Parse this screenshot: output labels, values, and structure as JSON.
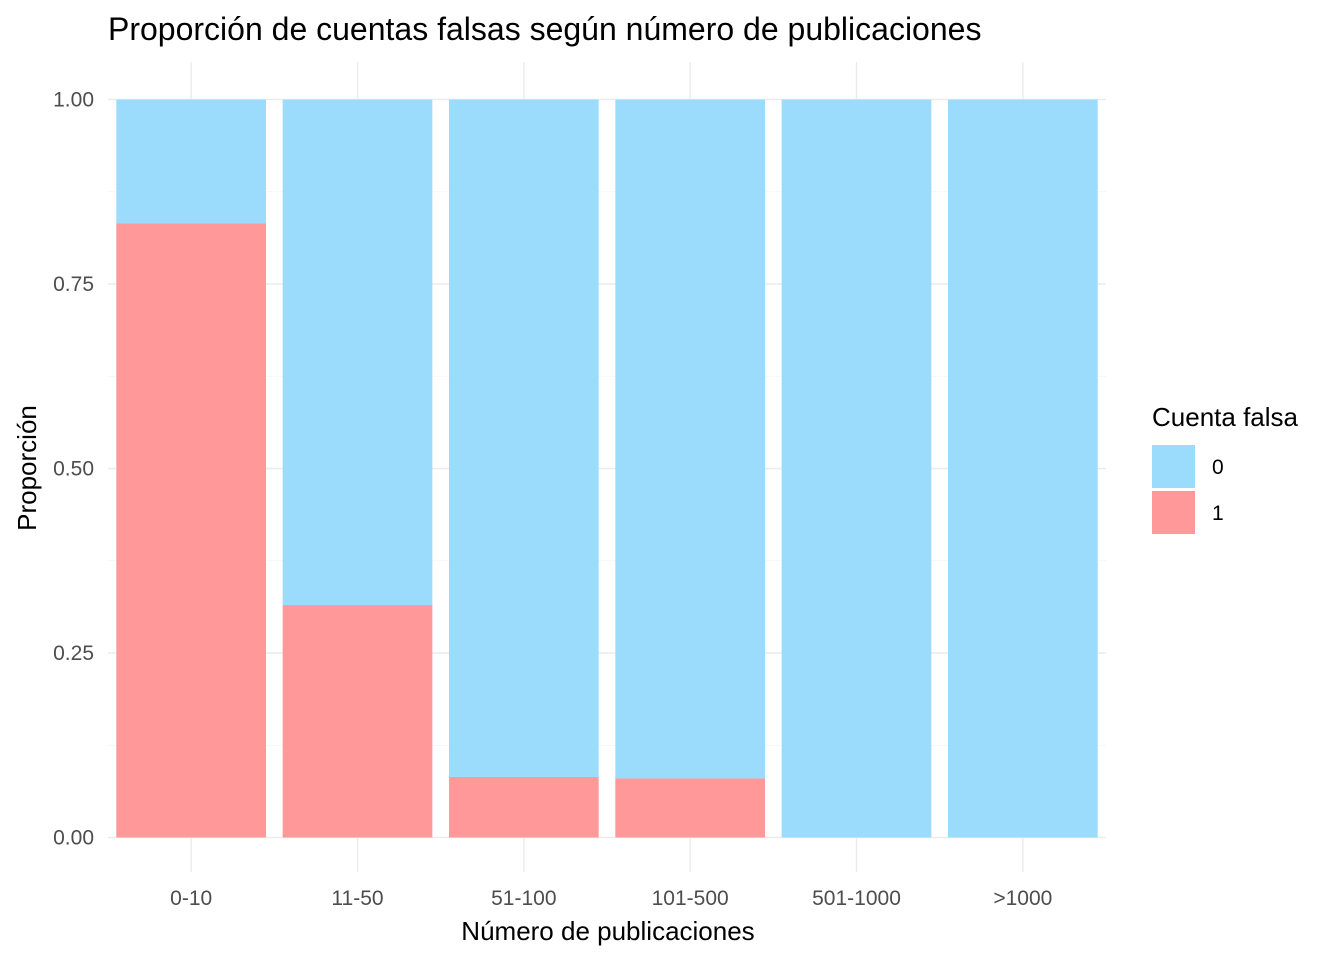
{
  "chart_data": {
    "type": "bar",
    "stacked": true,
    "title": "Proporción de cuentas falsas según número de publicaciones",
    "xlabel": "Número de publicaciones",
    "ylabel": "Proporción",
    "categories": [
      "0-10",
      "11-50",
      "51-100",
      "101-500",
      "501-1000",
      ">1000"
    ],
    "ylim": [
      0,
      1
    ],
    "yticks": [
      0,
      0.25,
      0.5,
      0.75,
      1
    ],
    "ytick_labels": [
      "0.00",
      "0.25",
      "0.50",
      "0.75",
      "1.00"
    ],
    "grid": true,
    "legend": {
      "title": "Cuenta falsa",
      "placement": "right"
    },
    "series": [
      {
        "name": "0",
        "color": "#9bdcfc",
        "values": [
          0.168,
          0.685,
          0.918,
          0.92,
          1.0,
          1.0
        ]
      },
      {
        "name": "1",
        "color": "#ff9999",
        "values": [
          0.832,
          0.315,
          0.082,
          0.08,
          0.0,
          0.0
        ]
      }
    ]
  }
}
